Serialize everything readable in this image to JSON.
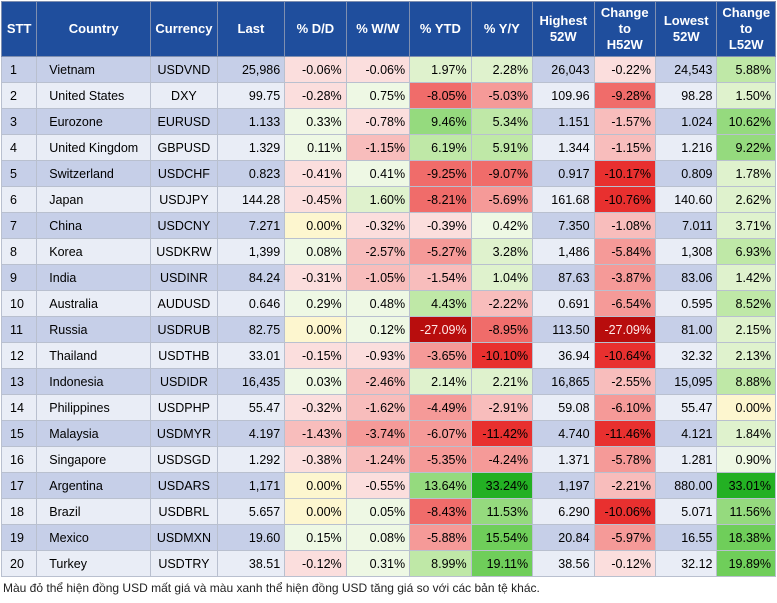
{
  "headers": {
    "stt": "STT",
    "country": "Country",
    "currency": "Currency",
    "last": "Last",
    "dd": "% D/D",
    "ww": "% W/W",
    "ytd": "% YTD",
    "yy": "% Y/Y",
    "high1": "Highest",
    "high2": "52W",
    "chh1": "Change",
    "chh2": "to",
    "chh3": "H52W",
    "low1": "Lowest",
    "low2": "52W",
    "chl1": "Change",
    "chl2": "to",
    "chl3": "L52W"
  },
  "rows": [
    {
      "stt": "1",
      "country": "Vietnam",
      "currency": "USDVND",
      "last": "25,986",
      "dd": "-0.06%",
      "ww": "-0.06%",
      "ytd": "1.97%",
      "yy": "2.28%",
      "high": "26,043",
      "chh": "-0.22%",
      "low": "24,543",
      "chl": "5.88%"
    },
    {
      "stt": "2",
      "country": "United States",
      "currency": "DXY",
      "last": "99.75",
      "dd": "-0.28%",
      "ww": "0.75%",
      "ytd": "-8.05%",
      "yy": "-5.03%",
      "high": "109.96",
      "chh": "-9.28%",
      "low": "98.28",
      "chl": "1.50%"
    },
    {
      "stt": "3",
      "country": "Eurozone",
      "currency": "EURUSD",
      "last": "1.133",
      "dd": "0.33%",
      "ww": "-0.78%",
      "ytd": "9.46%",
      "yy": "5.34%",
      "high": "1.151",
      "chh": "-1.57%",
      "low": "1.024",
      "chl": "10.62%"
    },
    {
      "stt": "4",
      "country": "United Kingdom",
      "currency": "GBPUSD",
      "last": "1.329",
      "dd": "0.11%",
      "ww": "-1.15%",
      "ytd": "6.19%",
      "yy": "5.91%",
      "high": "1.344",
      "chh": "-1.15%",
      "low": "1.216",
      "chl": "9.22%"
    },
    {
      "stt": "5",
      "country": "Switzerland",
      "currency": "USDCHF",
      "last": "0.823",
      "dd": "-0.41%",
      "ww": "0.41%",
      "ytd": "-9.25%",
      "yy": "-9.07%",
      "high": "0.917",
      "chh": "-10.17%",
      "low": "0.809",
      "chl": "1.78%"
    },
    {
      "stt": "6",
      "country": "Japan",
      "currency": "USDJPY",
      "last": "144.28",
      "dd": "-0.45%",
      "ww": "1.60%",
      "ytd": "-8.21%",
      "yy": "-5.69%",
      "high": "161.68",
      "chh": "-10.76%",
      "low": "140.60",
      "chl": "2.62%"
    },
    {
      "stt": "7",
      "country": "China",
      "currency": "USDCNY",
      "last": "7.271",
      "dd": "0.00%",
      "ww": "-0.32%",
      "ytd": "-0.39%",
      "yy": "0.42%",
      "high": "7.350",
      "chh": "-1.08%",
      "low": "7.011",
      "chl": "3.71%"
    },
    {
      "stt": "8",
      "country": "Korea",
      "currency": "USDKRW",
      "last": "1,399",
      "dd": "0.08%",
      "ww": "-2.57%",
      "ytd": "-5.27%",
      "yy": "3.28%",
      "high": "1,486",
      "chh": "-5.84%",
      "low": "1,308",
      "chl": "6.93%"
    },
    {
      "stt": "9",
      "country": "India",
      "currency": "USDINR",
      "last": "84.24",
      "dd": "-0.31%",
      "ww": "-1.05%",
      "ytd": "-1.54%",
      "yy": "1.04%",
      "high": "87.63",
      "chh": "-3.87%",
      "low": "83.06",
      "chl": "1.42%"
    },
    {
      "stt": "10",
      "country": "Australia",
      "currency": "AUDUSD",
      "last": "0.646",
      "dd": "0.29%",
      "ww": "0.48%",
      "ytd": "4.43%",
      "yy": "-2.22%",
      "high": "0.691",
      "chh": "-6.54%",
      "low": "0.595",
      "chl": "8.52%"
    },
    {
      "stt": "11",
      "country": "Russia",
      "currency": "USDRUB",
      "last": "82.75",
      "dd": "0.00%",
      "ww": "0.12%",
      "ytd": "-27.09%",
      "yy": "-8.95%",
      "high": "113.50",
      "chh": "-27.09%",
      "low": "81.00",
      "chl": "2.15%"
    },
    {
      "stt": "12",
      "country": "Thailand",
      "currency": "USDTHB",
      "last": "33.01",
      "dd": "-0.15%",
      "ww": "-0.93%",
      "ytd": "-3.65%",
      "yy": "-10.10%",
      "high": "36.94",
      "chh": "-10.64%",
      "low": "32.32",
      "chl": "2.13%"
    },
    {
      "stt": "13",
      "country": "Indonesia",
      "currency": "USDIDR",
      "last": "16,435",
      "dd": "0.03%",
      "ww": "-2.46%",
      "ytd": "2.14%",
      "yy": "2.21%",
      "high": "16,865",
      "chh": "-2.55%",
      "low": "15,095",
      "chl": "8.88%"
    },
    {
      "stt": "14",
      "country": "Philippines",
      "currency": "USDPHP",
      "last": "55.47",
      "dd": "-0.32%",
      "ww": "-1.62%",
      "ytd": "-4.49%",
      "yy": "-2.91%",
      "high": "59.08",
      "chh": "-6.10%",
      "low": "55.47",
      "chl": "0.00%"
    },
    {
      "stt": "15",
      "country": "Malaysia",
      "currency": "USDMYR",
      "last": "4.197",
      "dd": "-1.43%",
      "ww": "-3.74%",
      "ytd": "-6.07%",
      "yy": "-11.42%",
      "high": "4.740",
      "chh": "-11.46%",
      "low": "4.121",
      "chl": "1.84%"
    },
    {
      "stt": "16",
      "country": "Singapore",
      "currency": "USDSGD",
      "last": "1.292",
      "dd": "-0.38%",
      "ww": "-1.24%",
      "ytd": "-5.35%",
      "yy": "-4.24%",
      "high": "1.371",
      "chh": "-5.78%",
      "low": "1.281",
      "chl": "0.90%"
    },
    {
      "stt": "17",
      "country": "Argentina",
      "currency": "USDARS",
      "last": "1,171",
      "dd": "0.00%",
      "ww": "-0.55%",
      "ytd": "13.64%",
      "yy": "33.24%",
      "high": "1,197",
      "chh": "-2.21%",
      "low": "880.00",
      "chl": "33.01%"
    },
    {
      "stt": "18",
      "country": "Brazil",
      "currency": "USDBRL",
      "last": "5.657",
      "dd": "0.00%",
      "ww": "0.05%",
      "ytd": "-8.43%",
      "yy": "11.53%",
      "high": "6.290",
      "chh": "-10.06%",
      "low": "5.071",
      "chl": "11.56%"
    },
    {
      "stt": "19",
      "country": "Mexico",
      "currency": "USDMXN",
      "last": "19.60",
      "dd": "0.15%",
      "ww": "0.08%",
      "ytd": "-5.88%",
      "yy": "15.54%",
      "high": "20.84",
      "chh": "-5.97%",
      "low": "16.55",
      "chl": "18.38%"
    },
    {
      "stt": "20",
      "country": "Turkey",
      "currency": "USDTRY",
      "last": "38.51",
      "dd": "-0.12%",
      "ww": "0.31%",
      "ytd": "8.99%",
      "yy": "19.11%",
      "high": "38.56",
      "chh": "-0.12%",
      "low": "32.12",
      "chl": "19.89%"
    }
  ],
  "footnote": "Màu đỏ thể hiện đồng USD mất giá và màu xanh thể hiện đồng USD tăng giá so với các bản tệ khác.",
  "colors": {
    "header_bg": "#1f4e9d",
    "row_odd": "#c6cfe8",
    "row_even": "#e9edf6",
    "red_strong": "#e8302f",
    "red_dark": "#c81414",
    "green_strong": "#3fbf3f",
    "neutral": "#fdf6cf"
  }
}
